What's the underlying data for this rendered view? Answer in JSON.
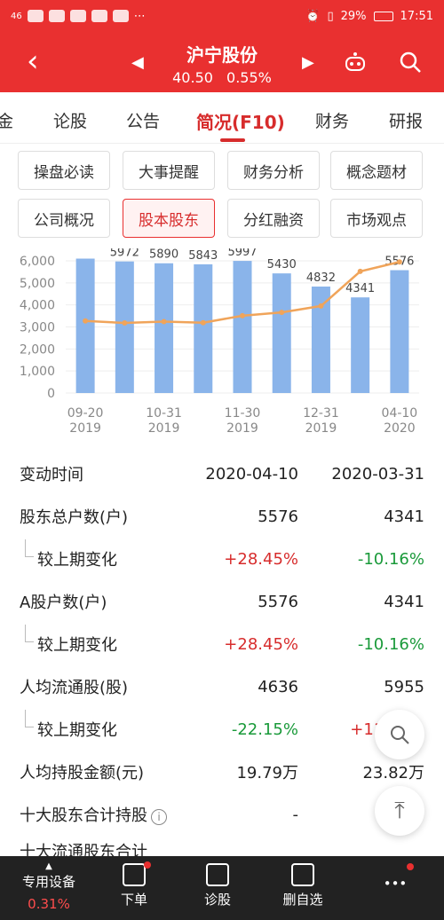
{
  "status": {
    "left": "46",
    "battery": "29%",
    "time": "17:51"
  },
  "header": {
    "title": "沪宁股份",
    "price": "40.50",
    "change": "0.55%"
  },
  "tabs": [
    {
      "label": "金"
    },
    {
      "label": "论股"
    },
    {
      "label": "公告"
    },
    {
      "label": "简况(F10)"
    },
    {
      "label": "财务"
    },
    {
      "label": "研报"
    }
  ],
  "buttons": [
    {
      "label": "操盘必读"
    },
    {
      "label": "大事提醒"
    },
    {
      "label": "财务分析"
    },
    {
      "label": "概念题材"
    },
    {
      "label": "公司概况"
    },
    {
      "label": "股本股东"
    },
    {
      "label": "分红融资"
    },
    {
      "label": "市场观点"
    }
  ],
  "chart_data": {
    "type": "bar",
    "categories": [
      "09-20 2019",
      "",
      "10-31 2019",
      "",
      "11-30 2019",
      "",
      "12-31 2019",
      "",
      "04-10 2020"
    ],
    "x_labels": [
      {
        "top": "09-20",
        "bottom": "2019"
      },
      {
        "top": "10-31",
        "bottom": "2019"
      },
      {
        "top": "11-30",
        "bottom": "2019"
      },
      {
        "top": "12-31",
        "bottom": "2019"
      },
      {
        "top": "04-10",
        "bottom": "2020"
      }
    ],
    "values": [
      6100,
      5972,
      5890,
      5843,
      5997,
      5430,
      4832,
      4341,
      5576
    ],
    "labels": [
      "",
      "5972",
      "5890",
      "5843",
      "5997",
      "5430",
      "4832",
      "4341",
      "5576"
    ],
    "line_values": [
      3270,
      3180,
      3240,
      3190,
      3510,
      3660,
      3950,
      5520,
      5950
    ],
    "ylim": [
      0,
      6000
    ],
    "yticks": [
      "6,000",
      "5,000",
      "4,000",
      "3,000",
      "2,000",
      "1,000",
      "0"
    ],
    "bar_color": "#8ab4ea",
    "line_color": "#f0a45a"
  },
  "table": {
    "header": {
      "label": "变动时间",
      "v1": "2020-04-10",
      "v2": "2020-03-31"
    },
    "rows": [
      {
        "label": "股东总户数(户)",
        "v1": "5576",
        "v2": "4341"
      },
      {
        "sub": "较上期变化",
        "v1": "+28.45%",
        "v2": "-10.16%"
      },
      {
        "label": "A股户数(户)",
        "v1": "5576",
        "v2": "4341"
      },
      {
        "sub": "较上期变化",
        "v1": "+28.45%",
        "v2": "-10.16%"
      },
      {
        "label": "人均流通股(股)",
        "v1": "4636",
        "v2": "5955"
      },
      {
        "sub": "较上期变化",
        "v1": "-22.15%",
        "v2": "+11.31%"
      },
      {
        "label": "人均持股金额(元)",
        "v1": "19.79万",
        "v2": "23.82万"
      },
      {
        "label": "十大股东合计持股",
        "v1": "-",
        "v2": "-"
      }
    ],
    "cut_row": "十大流通股东合计"
  },
  "bottom": {
    "items": [
      {
        "label": "专用设备",
        "sub": "0.31%"
      },
      {
        "label": "下单"
      },
      {
        "label": "诊股"
      },
      {
        "label": "删自选"
      },
      {
        "label": "•••"
      }
    ]
  }
}
